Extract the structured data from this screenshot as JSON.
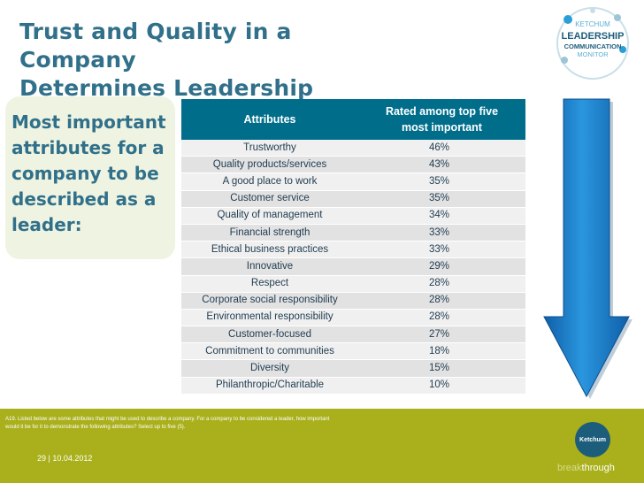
{
  "title": {
    "line1": "Trust and Quality in a Company",
    "line2": "Determines Leadership"
  },
  "left_panel": {
    "text": "Most important attributes for a company to be described as a leader:"
  },
  "logo": {
    "top": "KETCHUM",
    "middle": "LEADERSHIP",
    "sub1": "COMMUNICATION",
    "sub2": "MONITOR"
  },
  "table": {
    "header_col1": "Attributes",
    "header_col2_line1": "Rated among top five",
    "header_col2_line2": "most important",
    "rows": [
      {
        "attribute": "Trustworthy",
        "value": "46%"
      },
      {
        "attribute": "Quality products/services",
        "value": "43%"
      },
      {
        "attribute": "A good place to work",
        "value": "35%"
      },
      {
        "attribute": "Customer service",
        "value": "35%"
      },
      {
        "attribute": "Quality of management",
        "value": "34%"
      },
      {
        "attribute": "Financial strength",
        "value": "33%"
      },
      {
        "attribute": "Ethical business practices",
        "value": "33%"
      },
      {
        "attribute": "Innovative",
        "value": "29%"
      },
      {
        "attribute": "Respect",
        "value": "28%"
      },
      {
        "attribute": "Corporate social responsibility",
        "value": "28%"
      },
      {
        "attribute": "Environmental responsibility",
        "value": "28%"
      },
      {
        "attribute": "Customer-focused",
        "value": "27%"
      },
      {
        "attribute": "Commitment to communities",
        "value": "18%"
      },
      {
        "attribute": "Diversity",
        "value": "15%"
      },
      {
        "attribute": "Philanthropic/Charitable",
        "value": "10%"
      }
    ]
  },
  "footnote": {
    "line1": "A19. Listed below are some attributes that might be used to describe a company. For a company to be considered a leader, how important",
    "line2": "would it be for it to demonstrate  the following attributes? Select up to five (5)."
  },
  "footer": {
    "page": "29 | 10.04.2012",
    "brand": "Ketchum",
    "tagline_pre": "break",
    "tagline_post": "through"
  },
  "colors": {
    "title": "#31708a",
    "header": "#006e8b",
    "footer_bar": "#a9b01b",
    "arrow": "#1a82c8"
  }
}
